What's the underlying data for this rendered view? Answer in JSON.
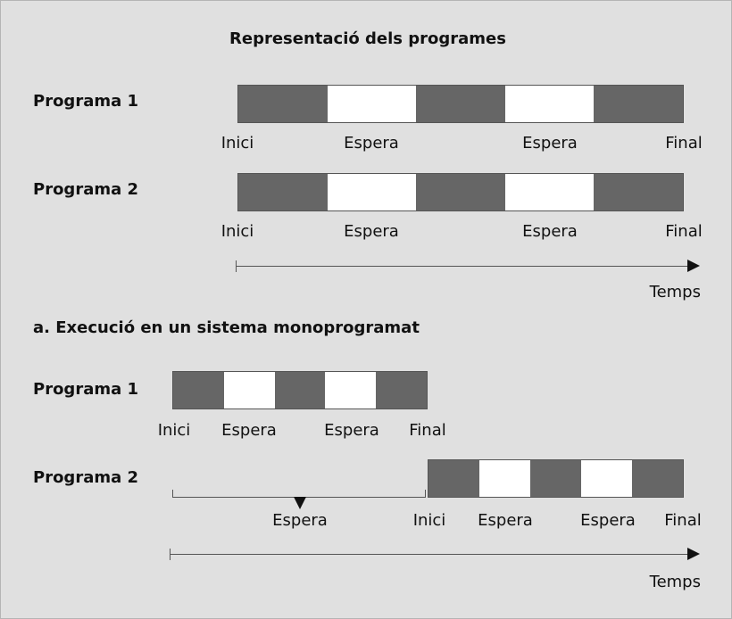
{
  "title": "Representació dels programes",
  "representation": {
    "program1": {
      "label": "Programa 1",
      "blocks": [
        "run",
        "wait",
        "run",
        "wait",
        "run"
      ],
      "labels": [
        "Inici",
        "Espera",
        "Espera",
        "Final"
      ]
    },
    "program2": {
      "label": "Programa 2",
      "blocks": [
        "run",
        "wait",
        "run",
        "wait",
        "run"
      ],
      "labels": [
        "Inici",
        "Espera",
        "Espera",
        "Final"
      ]
    },
    "axis_label": "Temps"
  },
  "mono": {
    "title": "a. Execució en un sistema monoprogramat",
    "program1": {
      "label": "Programa 1",
      "blocks": [
        "run",
        "wait",
        "run",
        "wait",
        "run"
      ],
      "labels": [
        "Inici",
        "Espera",
        "Espera",
        "Final"
      ]
    },
    "program2": {
      "label": "Programa 2",
      "initial_wait_label": "Espera",
      "blocks": [
        "run",
        "wait",
        "run",
        "wait",
        "run"
      ],
      "labels": [
        "Inici",
        "Espera",
        "Espera",
        "Final"
      ]
    },
    "axis_label": "Temps"
  },
  "colors": {
    "run": "#666666",
    "wait": "#ffffff",
    "background": "#e0e0e0"
  }
}
